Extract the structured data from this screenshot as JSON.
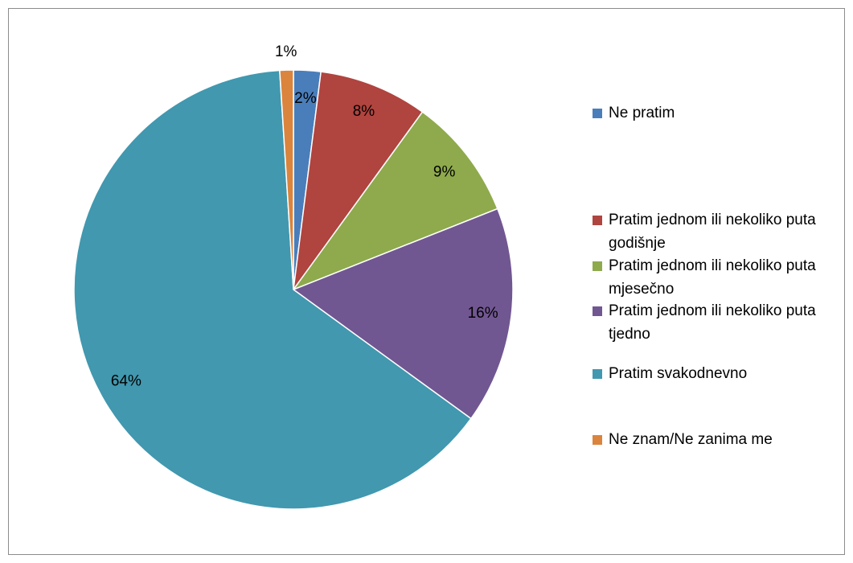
{
  "chart_data": {
    "type": "pie",
    "categories": [
      "Ne pratim",
      "Pratim jednom ili nekoliko puta godišnje",
      "Pratim jednom ili nekoliko puta mjesečno",
      "Pratim jednom ili nekoliko puta tjedno",
      "Pratim svakodnevno",
      "Ne znam/Ne zanima me"
    ],
    "values": [
      2,
      8,
      9,
      16,
      64,
      1
    ],
    "value_labels": [
      "2%",
      "8%",
      "9%",
      "16%",
      "64%",
      "1%"
    ],
    "colors": [
      "#4a7ebb",
      "#b0443f",
      "#8eaa4c",
      "#715791",
      "#4198af",
      "#db843d"
    ],
    "legend": "right"
  }
}
